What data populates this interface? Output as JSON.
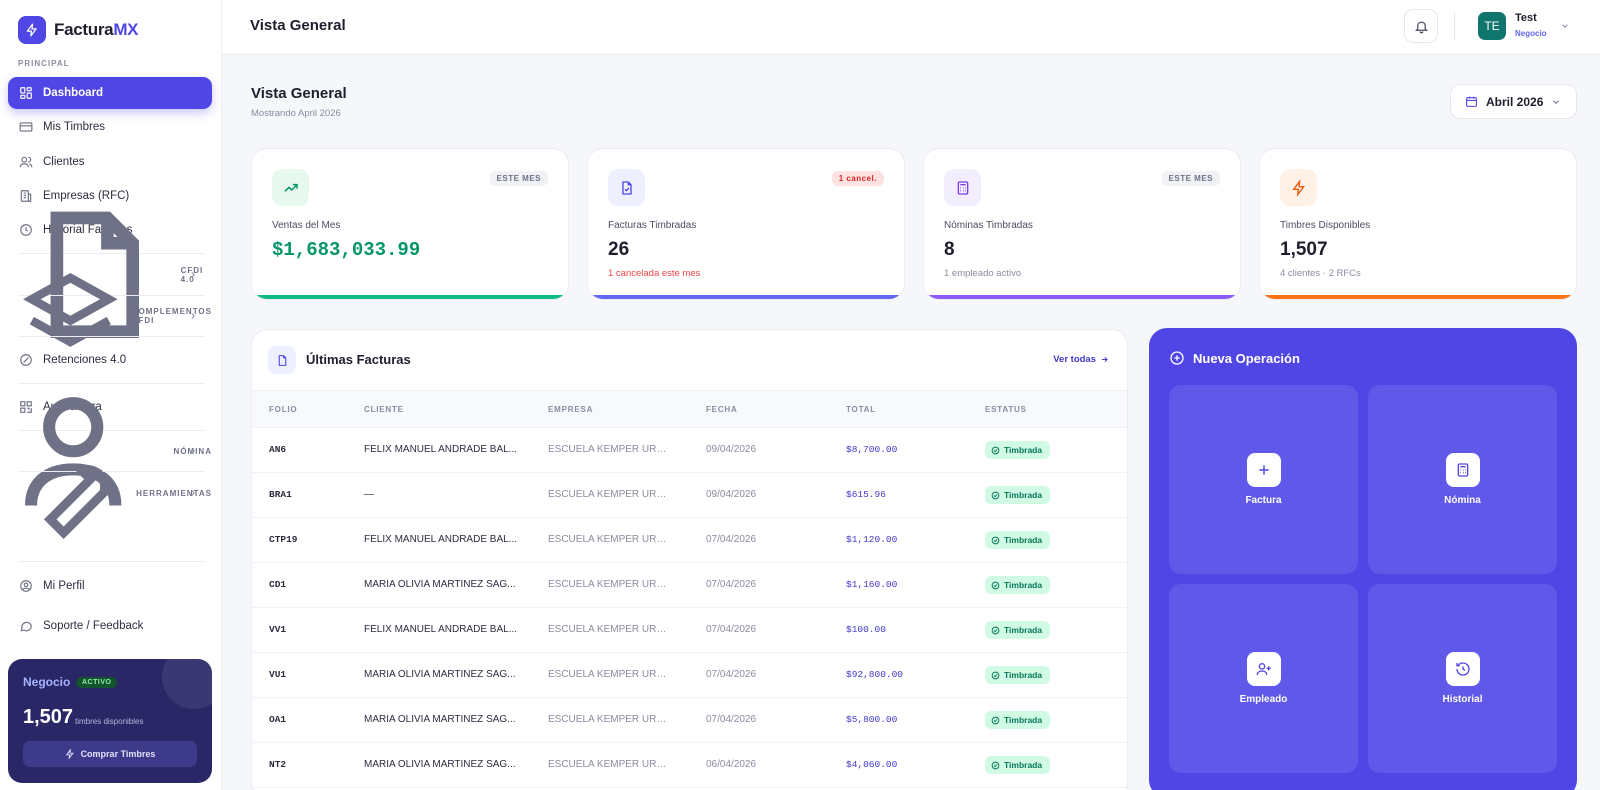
{
  "brand": {
    "name_prefix": "Factura",
    "name_suffix": "MX"
  },
  "sidebar": {
    "section_label": "PRINCIPAL",
    "items": [
      {
        "label": "Dashboard"
      },
      {
        "label": "Mis Timbres"
      },
      {
        "label": "Clientes"
      },
      {
        "label": "Empresas (RFC)"
      },
      {
        "label": "Historial Facturas"
      }
    ],
    "groups": [
      {
        "label": "CFDI 4.0"
      },
      {
        "label": "COMPLEMENTOS CFDI"
      }
    ],
    "retenciones": "Retenciones 4.0",
    "autofactura": "Autofactura",
    "groups2": [
      {
        "label": "NÓMINA"
      },
      {
        "label": "HERRAMIENTAS"
      }
    ],
    "footer_items": [
      {
        "label": "Mi Perfil"
      },
      {
        "label": "Soporte / Feedback"
      }
    ],
    "plan": {
      "title": "Negocio",
      "badge": "ACTIVO",
      "count": "1,507",
      "count_label": "timbres disponibles",
      "button": "Comprar Timbres"
    }
  },
  "header": {
    "title": "Vista General",
    "user": {
      "initials": "TE",
      "name": "Test",
      "role": "Negocio"
    }
  },
  "main": {
    "title": "Vista General",
    "subtitle": "Mostrando April 2026",
    "date_picker": "Abril 2026"
  },
  "stats": [
    {
      "label": "Ventas del Mes",
      "value": "$1,683,033.99",
      "badge": "ESTE MES",
      "note": "",
      "accent": "#10b981",
      "icon": "trending-up-icon"
    },
    {
      "label": "Facturas Timbradas",
      "value": "26",
      "badge": "1 cancel.",
      "note": "1 cancelada este mes",
      "accent": "#6366f1",
      "icon": "file-check-icon"
    },
    {
      "label": "Nóminas Timbradas",
      "value": "8",
      "badge": "ESTE MES",
      "note": "1 empleado activo",
      "accent": "#8b5cf6",
      "icon": "calculator-icon"
    },
    {
      "label": "Timbres Disponibles",
      "value": "1,507",
      "badge": "",
      "note": "4 clientes · 2 RFCs",
      "accent": "#f97316",
      "icon": "bolt-icon"
    }
  ],
  "invoices": {
    "title": "Últimas Facturas",
    "link": "Ver todas",
    "columns": [
      "FOLIO",
      "CLIENTE",
      "EMPRESA",
      "FECHA",
      "TOTAL",
      "ESTATUS"
    ],
    "rows": [
      {
        "folio": "AN6",
        "cliente": "FELIX MANUEL ANDRADE BAL...",
        "empresa": "ESCUELA KEMPER URGA...",
        "fecha": "09/04/2026",
        "total": "$8,700.00",
        "estatus": "Timbrada"
      },
      {
        "folio": "BRA1",
        "cliente": "—",
        "empresa": "ESCUELA KEMPER URGA...",
        "fecha": "09/04/2026",
        "total": "$615.96",
        "estatus": "Timbrada"
      },
      {
        "folio": "CTP19",
        "cliente": "FELIX MANUEL ANDRADE BAL...",
        "empresa": "ESCUELA KEMPER URGA...",
        "fecha": "07/04/2026",
        "total": "$1,120.00",
        "estatus": "Timbrada"
      },
      {
        "folio": "CD1",
        "cliente": "MARIA OLIVIA MARTINEZ SAG...",
        "empresa": "ESCUELA KEMPER URGA...",
        "fecha": "07/04/2026",
        "total": "$1,160.00",
        "estatus": "Timbrada"
      },
      {
        "folio": "VV1",
        "cliente": "FELIX MANUEL ANDRADE BAL...",
        "empresa": "ESCUELA KEMPER URGA...",
        "fecha": "07/04/2026",
        "total": "$100.00",
        "estatus": "Timbrada"
      },
      {
        "folio": "VU1",
        "cliente": "MARIA OLIVIA MARTINEZ SAG...",
        "empresa": "ESCUELA KEMPER URGA...",
        "fecha": "07/04/2026",
        "total": "$92,800.00",
        "estatus": "Timbrada"
      },
      {
        "folio": "OA1",
        "cliente": "MARIA OLIVIA MARTINEZ SAG...",
        "empresa": "ESCUELA KEMPER URGA...",
        "fecha": "07/04/2026",
        "total": "$5,800.00",
        "estatus": "Timbrada"
      },
      {
        "folio": "NT2",
        "cliente": "MARIA OLIVIA MARTINEZ SAG...",
        "empresa": "ESCUELA KEMPER URGA...",
        "fecha": "06/04/2026",
        "total": "$4,060.00",
        "estatus": "Timbrada"
      }
    ]
  },
  "new_operation": {
    "title": "Nueva Operación",
    "tiles": [
      {
        "label": "Factura",
        "icon": "plus-icon"
      },
      {
        "label": "Nómina",
        "icon": "calculator-icon"
      },
      {
        "label": "Empleado",
        "icon": "user-plus-icon"
      },
      {
        "label": "Historial",
        "icon": "history-icon"
      }
    ]
  }
}
